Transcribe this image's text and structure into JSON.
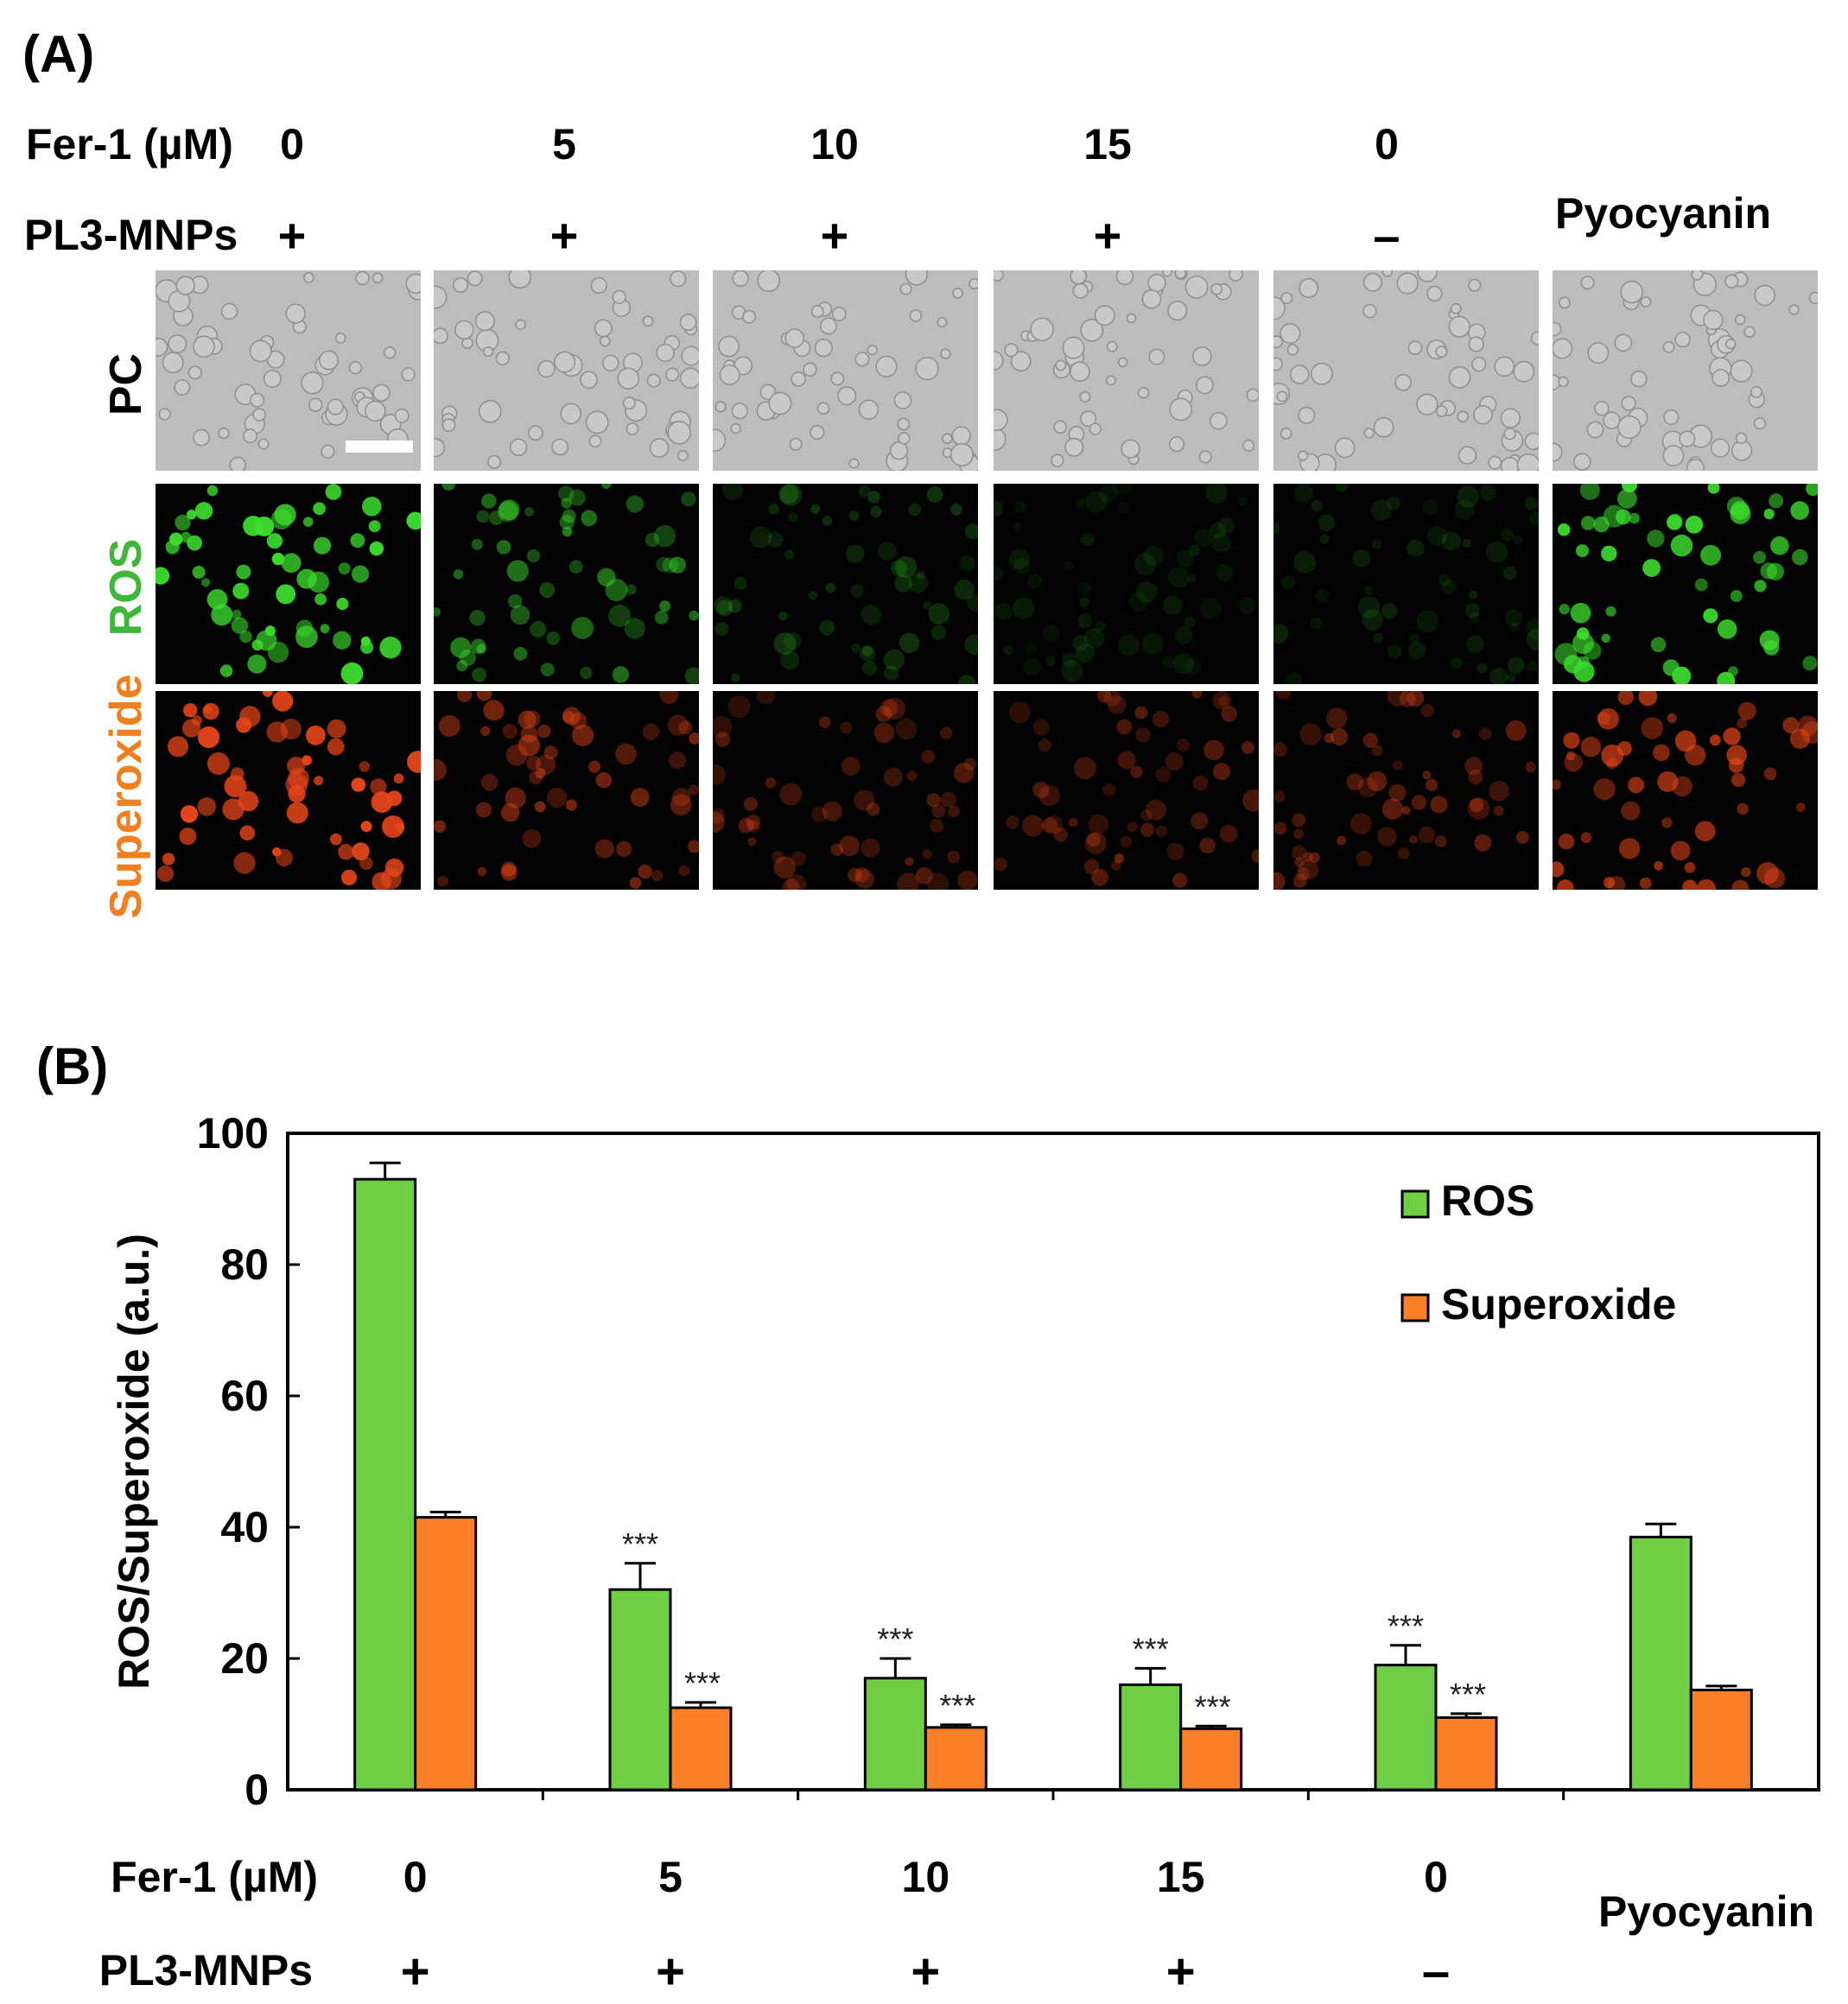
{
  "panel_a": {
    "label": "(A)",
    "fer1_label": "Fer-1 (µM)",
    "pl3_label": "PL3-MNPs",
    "pyocyanin_label": "Pyocyanin",
    "columns": [
      {
        "fer1": "0",
        "pl3": "+"
      },
      {
        "fer1": "5",
        "pl3": "+"
      },
      {
        "fer1": "10",
        "pl3": "+"
      },
      {
        "fer1": "15",
        "pl3": "+"
      },
      {
        "fer1": "0",
        "pl3": "–"
      },
      {
        "fer1": "",
        "pl3": ""
      }
    ],
    "rows": [
      {
        "label": "PC",
        "color": "#000000"
      },
      {
        "label": "ROS",
        "color": "#3db83a"
      },
      {
        "label": "Superoxide",
        "color": "#f07f22"
      }
    ],
    "colors": {
      "pc_background": "#bdbdbd",
      "ros_cell": "#3ddc2e",
      "superoxide_cell": "#e8461a"
    },
    "ros_intensity": [
      1.0,
      0.55,
      0.22,
      0.12,
      0.15,
      0.95
    ],
    "superoxide_intensity": [
      1.0,
      0.5,
      0.35,
      0.35,
      0.4,
      0.7
    ]
  },
  "panel_b": {
    "label": "(B)",
    "fer1_label": "Fer-1 (µM)",
    "pl3_label": "PL3-MNPs",
    "pyocyanin_label": "Pyocyanin",
    "significance_mark": "***"
  },
  "chart_data": {
    "type": "bar",
    "categories": [
      "0 / +",
      "5 / +",
      "10 / +",
      "15 / +",
      "0 / –",
      "Pyocyanin"
    ],
    "category_rows": {
      "fer1": [
        "0",
        "5",
        "10",
        "15",
        "0",
        ""
      ],
      "pl3_mnps": [
        "+",
        "+",
        "+",
        "+",
        "–",
        ""
      ]
    },
    "series": [
      {
        "name": "ROS",
        "color": "#6fce43",
        "values": [
          93.0,
          30.5,
          17.0,
          16.0,
          19.0,
          38.5
        ],
        "errors": [
          2.5,
          4.0,
          3.0,
          2.5,
          3.0,
          2.0
        ],
        "significance": [
          "",
          "***",
          "***",
          "***",
          "***",
          ""
        ]
      },
      {
        "name": "Superoxide",
        "color": "#fb7f29",
        "values": [
          41.5,
          12.5,
          9.5,
          9.3,
          11.0,
          15.2
        ],
        "errors": [
          0.8,
          0.8,
          0.4,
          0.4,
          0.6,
          0.6
        ],
        "significance": [
          "",
          "***",
          "***",
          "***",
          "***",
          ""
        ]
      }
    ],
    "ylabel": "ROS/Superoxide (a.u.)",
    "xlabel": "",
    "ylim": [
      0,
      100
    ],
    "yticks": [
      0,
      20,
      40,
      60,
      80,
      100
    ],
    "grid": false,
    "legend_position": "top-right"
  }
}
